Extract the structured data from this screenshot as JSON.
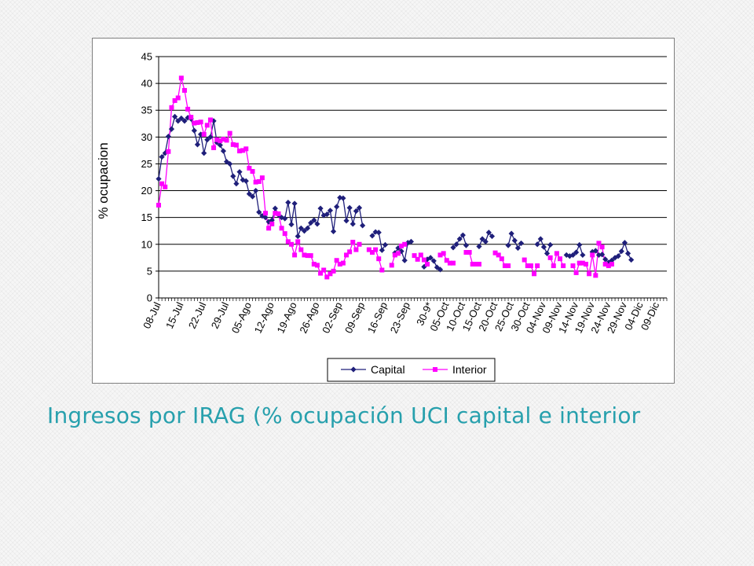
{
  "slide": {
    "title": "Ingresos por IRAG (% ocupación UCI capital e interior"
  },
  "chart_data": {
    "type": "line",
    "title": "",
    "xlabel": "",
    "ylabel": "% ocupacion",
    "ylim": [
      0,
      45
    ],
    "yticks": [
      0,
      5,
      10,
      15,
      20,
      25,
      30,
      35,
      40,
      45
    ],
    "grid": "horizontal",
    "legend_position": "bottom",
    "x_start": "08-Jul",
    "x_end": "12-Dic",
    "x_tick_labels": [
      "08-Jul",
      "15-Jul",
      "22-Jul",
      "29-Jul",
      "05-Ago",
      "12-Ago",
      "19-Ago",
      "26-Ago",
      "02-Sep",
      "09-Sep",
      "16-Sep",
      "23-Sep",
      "30-9*",
      "05-Oct",
      "10-Oct",
      "15-Oct",
      "20-Oct",
      "25-Oct",
      "30-Oct",
      "04-Nov",
      "09-Nov",
      "14-Nov",
      "19-Nov",
      "24-Nov",
      "29-Nov",
      "04-Dic",
      "09-Dic"
    ],
    "x_tick_days": [
      0,
      7,
      14,
      21,
      28,
      35,
      42,
      49,
      56,
      63,
      70,
      77,
      84,
      89,
      94,
      99,
      104,
      109,
      114,
      119,
      124,
      129,
      134,
      139,
      144,
      149,
      154
    ],
    "x_max_day": 157,
    "series": [
      {
        "name": "Capital",
        "color": "#1f1f7a",
        "marker": "diamond",
        "points": [
          [
            0,
            22.2
          ],
          [
            1,
            26.3
          ],
          [
            2,
            27.0
          ],
          [
            3,
            30.1
          ],
          [
            4,
            31.5
          ],
          [
            5,
            33.8
          ],
          [
            6,
            33.0
          ],
          [
            7,
            33.5
          ],
          [
            8,
            33.0
          ],
          [
            9,
            33.6
          ],
          [
            10,
            33.4
          ],
          [
            11,
            31.2
          ],
          [
            12,
            28.6
          ],
          [
            13,
            30.5
          ],
          [
            14,
            27.0
          ],
          [
            15,
            29.5
          ],
          [
            16,
            30.0
          ],
          [
            17,
            33.0
          ],
          [
            18,
            29.0
          ],
          [
            19,
            28.5
          ],
          [
            20,
            27.4
          ],
          [
            21,
            25.4
          ],
          [
            22,
            25.0
          ],
          [
            23,
            22.7
          ],
          [
            24,
            21.3
          ],
          [
            25,
            23.5
          ],
          [
            26,
            22.0
          ],
          [
            27,
            21.8
          ],
          [
            28,
            19.4
          ],
          [
            29,
            18.9
          ],
          [
            30,
            20.0
          ],
          [
            31,
            16.0
          ],
          [
            32,
            15.3
          ],
          [
            33,
            15.0
          ],
          [
            34,
            14.2
          ],
          [
            35,
            14.5
          ],
          [
            36,
            16.7
          ],
          [
            37,
            15.5
          ],
          [
            38,
            15.0
          ],
          [
            39,
            14.8
          ],
          [
            40,
            17.8
          ],
          [
            41,
            13.7
          ],
          [
            42,
            17.6
          ],
          [
            43,
            11.5
          ],
          [
            44,
            13.0
          ],
          [
            45,
            12.5
          ],
          [
            46,
            13.0
          ],
          [
            47,
            14.0
          ],
          [
            48,
            14.5
          ],
          [
            49,
            13.8
          ],
          [
            50,
            16.7
          ],
          [
            51,
            15.4
          ],
          [
            52,
            15.6
          ],
          [
            53,
            16.3
          ],
          [
            54,
            12.4
          ],
          [
            55,
            17.0
          ],
          [
            56,
            18.7
          ],
          [
            57,
            18.6
          ],
          [
            58,
            14.4
          ],
          [
            59,
            16.8
          ],
          [
            60,
            13.8
          ],
          [
            61,
            16.2
          ],
          [
            62,
            16.8
          ],
          [
            63,
            13.5
          ],
          [
            66,
            11.6
          ],
          [
            67,
            12.3
          ],
          [
            68,
            12.2
          ],
          [
            69,
            8.9
          ],
          [
            70,
            9.9
          ],
          [
            73,
            8.4
          ],
          [
            74,
            9.3
          ],
          [
            75,
            8.7
          ],
          [
            76,
            7.0
          ],
          [
            77,
            10.3
          ],
          [
            78,
            10.5
          ],
          [
            82,
            5.8
          ],
          [
            83,
            7.2
          ],
          [
            84,
            7.5
          ],
          [
            85,
            6.9
          ],
          [
            86,
            5.7
          ],
          [
            87,
            5.3
          ],
          [
            91,
            9.4
          ],
          [
            92,
            10.0
          ],
          [
            93,
            11.0
          ],
          [
            94,
            11.7
          ],
          [
            95,
            9.8
          ],
          [
            99,
            9.6
          ],
          [
            100,
            11.0
          ],
          [
            101,
            10.5
          ],
          [
            102,
            12.2
          ],
          [
            103,
            11.5
          ],
          [
            108,
            9.8
          ],
          [
            109,
            12.0
          ],
          [
            110,
            10.7
          ],
          [
            111,
            9.3
          ],
          [
            112,
            10.2
          ],
          [
            117,
            10.0
          ],
          [
            118,
            11.0
          ],
          [
            119,
            9.5
          ],
          [
            120,
            8.3
          ],
          [
            121,
            9.9
          ],
          [
            126,
            8.0
          ],
          [
            127,
            7.8
          ],
          [
            128,
            8.0
          ],
          [
            129,
            8.5
          ],
          [
            130,
            9.9
          ],
          [
            131,
            8.0
          ],
          [
            134,
            8.6
          ],
          [
            135,
            8.8
          ],
          [
            136,
            8.0
          ],
          [
            137,
            8.1
          ],
          [
            138,
            7.2
          ],
          [
            139,
            6.6
          ],
          [
            140,
            7.0
          ],
          [
            141,
            7.5
          ],
          [
            142,
            7.8
          ],
          [
            143,
            8.7
          ],
          [
            144,
            10.3
          ],
          [
            145,
            8.3
          ],
          [
            146,
            7.1
          ]
        ]
      },
      {
        "name": "Interior",
        "color": "#ff00ff",
        "marker": "square",
        "points": [
          [
            0,
            17.3
          ],
          [
            1,
            21.3
          ],
          [
            2,
            20.7
          ],
          [
            3,
            27.3
          ],
          [
            4,
            35.5
          ],
          [
            5,
            36.8
          ],
          [
            6,
            37.3
          ],
          [
            7,
            41.0
          ],
          [
            8,
            38.7
          ],
          [
            9,
            35.2
          ],
          [
            10,
            33.7
          ],
          [
            11,
            32.6
          ],
          [
            12,
            32.7
          ],
          [
            13,
            32.8
          ],
          [
            14,
            30.5
          ],
          [
            15,
            32.2
          ],
          [
            16,
            33.2
          ],
          [
            17,
            28.0
          ],
          [
            18,
            29.5
          ],
          [
            19,
            29.3
          ],
          [
            20,
            29.6
          ],
          [
            21,
            29.4
          ],
          [
            22,
            30.7
          ],
          [
            23,
            28.6
          ],
          [
            24,
            28.5
          ],
          [
            25,
            27.4
          ],
          [
            26,
            27.5
          ],
          [
            27,
            27.8
          ],
          [
            28,
            24.2
          ],
          [
            29,
            23.6
          ],
          [
            30,
            21.6
          ],
          [
            31,
            21.7
          ],
          [
            32,
            22.4
          ],
          [
            33,
            15.8
          ],
          [
            34,
            13.0
          ],
          [
            35,
            13.8
          ],
          [
            36,
            15.8
          ],
          [
            37,
            15.7
          ],
          [
            38,
            13.0
          ],
          [
            39,
            12.0
          ],
          [
            40,
            10.5
          ],
          [
            41,
            10.0
          ],
          [
            42,
            8.0
          ],
          [
            43,
            10.5
          ],
          [
            44,
            9.0
          ],
          [
            45,
            8.0
          ],
          [
            46,
            7.9
          ],
          [
            47,
            7.9
          ],
          [
            48,
            6.3
          ],
          [
            49,
            6.1
          ],
          [
            50,
            4.6
          ],
          [
            51,
            5.2
          ],
          [
            52,
            3.9
          ],
          [
            53,
            4.5
          ],
          [
            54,
            5.0
          ],
          [
            55,
            7.0
          ],
          [
            56,
            6.3
          ],
          [
            57,
            6.5
          ],
          [
            58,
            8.0
          ],
          [
            59,
            8.6
          ],
          [
            60,
            10.4
          ],
          [
            61,
            9.0
          ],
          [
            62,
            10.0
          ],
          [
            65,
            9.0
          ],
          [
            66,
            8.5
          ],
          [
            67,
            9.0
          ],
          [
            68,
            7.3
          ],
          [
            69,
            5.2
          ],
          [
            72,
            6.1
          ],
          [
            73,
            8.0
          ],
          [
            74,
            8.3
          ],
          [
            75,
            9.7
          ],
          [
            76,
            10.0
          ],
          [
            79,
            7.9
          ],
          [
            80,
            7.2
          ],
          [
            81,
            8.0
          ],
          [
            82,
            7.1
          ],
          [
            83,
            6.3
          ],
          [
            87,
            8.0
          ],
          [
            88,
            8.3
          ],
          [
            89,
            7.0
          ],
          [
            90,
            6.5
          ],
          [
            91,
            6.5
          ],
          [
            95,
            8.5
          ],
          [
            96,
            8.5
          ],
          [
            97,
            6.3
          ],
          [
            98,
            6.3
          ],
          [
            99,
            6.3
          ],
          [
            104,
            8.4
          ],
          [
            105,
            8.0
          ],
          [
            106,
            7.3
          ],
          [
            107,
            6.0
          ],
          [
            108,
            6.0
          ],
          [
            113,
            7.1
          ],
          [
            114,
            6.0
          ],
          [
            115,
            6.0
          ],
          [
            116,
            4.5
          ],
          [
            117,
            6.0
          ],
          [
            121,
            7.5
          ],
          [
            122,
            6.0
          ],
          [
            123,
            8.3
          ],
          [
            124,
            7.3
          ],
          [
            125,
            6.0
          ],
          [
            128,
            6.0
          ],
          [
            129,
            4.7
          ],
          [
            130,
            6.5
          ],
          [
            131,
            6.5
          ],
          [
            132,
            6.3
          ],
          [
            133,
            4.5
          ],
          [
            134,
            8.0
          ],
          [
            135,
            4.2
          ],
          [
            136,
            10.2
          ],
          [
            137,
            9.5
          ],
          [
            138,
            6.3
          ],
          [
            139,
            6.0
          ],
          [
            140,
            6.3
          ]
        ]
      }
    ]
  }
}
